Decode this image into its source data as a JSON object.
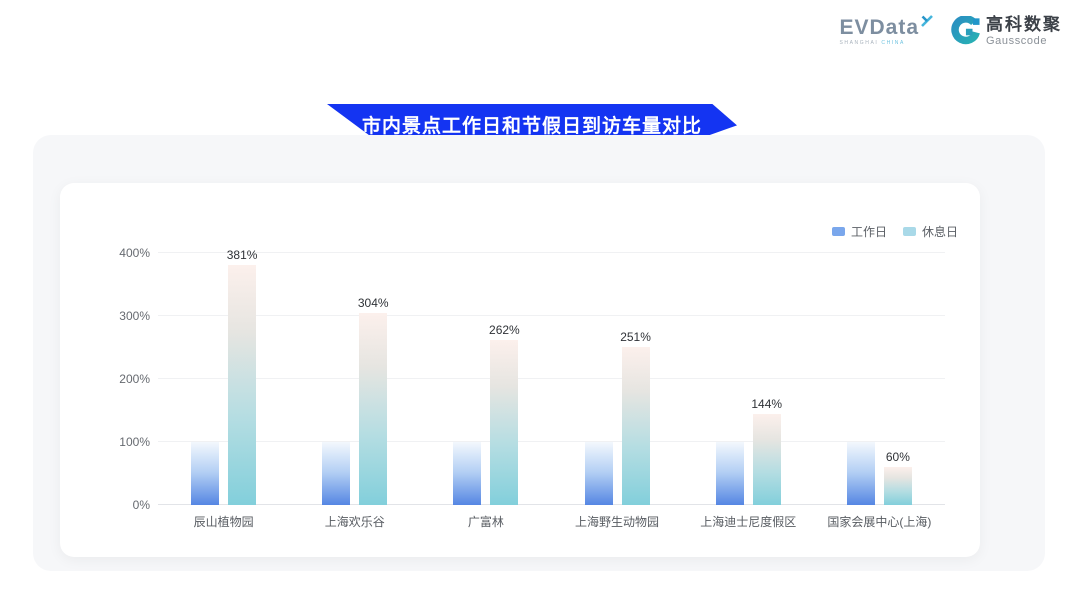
{
  "header": {
    "evdata": {
      "text": "EVData",
      "sub_left": "SHANGHAI",
      "sub_right": "CHINA"
    },
    "gausscode": {
      "cn": "高科数聚",
      "en": "Gausscode"
    }
  },
  "banner": {
    "title": "市内景点工作日和节假日到访车量对比",
    "color": "#1434f2"
  },
  "chart_data": {
    "type": "bar",
    "title": "市内景点工作日和节假日到访车量对比",
    "categories": [
      "辰山植物园",
      "上海欢乐谷",
      "广富林",
      "上海野生动物园",
      "上海迪士尼度假区",
      "国家会展中心(上海)"
    ],
    "series": [
      {
        "key": "workday",
        "name": "工作日",
        "values": [
          100,
          100,
          100,
          100,
          100,
          100
        ],
        "legend_color": "#7aa7ec",
        "show_labels": false
      },
      {
        "key": "restday",
        "name": "休息日",
        "values": [
          381,
          304,
          262,
          251,
          144,
          60
        ],
        "legend_color": "#a9d9e8",
        "show_labels": true
      }
    ],
    "unit": "%",
    "yticks": [
      "0%",
      "100%",
      "200%",
      "300%",
      "400%"
    ],
    "ylim": [
      0,
      400
    ],
    "grid": true,
    "legend_position": "top-right",
    "colors": {
      "workday_gradient": [
        "#f3f8fd",
        "#5586e3"
      ],
      "restday_gradient": [
        "#fcf0ec",
        "#82cfdb"
      ]
    }
  }
}
